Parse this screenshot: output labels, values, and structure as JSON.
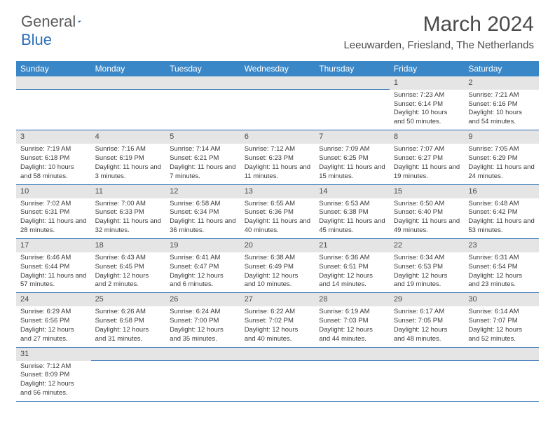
{
  "logo": {
    "text1": "General",
    "text2": "Blue"
  },
  "title": "March 2024",
  "location": "Leeuwarden, Friesland, The Netherlands",
  "colors": {
    "header_bg": "#3a87c8",
    "header_text": "#ffffff",
    "daynum_bg": "#e5e5e5",
    "row_divider": "#2e6fb5",
    "body_text": "#3a3a3a",
    "title_text": "#4a4a4a"
  },
  "weekdays": [
    "Sunday",
    "Monday",
    "Tuesday",
    "Wednesday",
    "Thursday",
    "Friday",
    "Saturday"
  ],
  "first_weekday_index": 5,
  "days": [
    {
      "n": 1,
      "sunrise": "7:23 AM",
      "sunset": "6:14 PM",
      "daylight": "10 hours and 50 minutes."
    },
    {
      "n": 2,
      "sunrise": "7:21 AM",
      "sunset": "6:16 PM",
      "daylight": "10 hours and 54 minutes."
    },
    {
      "n": 3,
      "sunrise": "7:19 AM",
      "sunset": "6:18 PM",
      "daylight": "10 hours and 58 minutes."
    },
    {
      "n": 4,
      "sunrise": "7:16 AM",
      "sunset": "6:19 PM",
      "daylight": "11 hours and 3 minutes."
    },
    {
      "n": 5,
      "sunrise": "7:14 AM",
      "sunset": "6:21 PM",
      "daylight": "11 hours and 7 minutes."
    },
    {
      "n": 6,
      "sunrise": "7:12 AM",
      "sunset": "6:23 PM",
      "daylight": "11 hours and 11 minutes."
    },
    {
      "n": 7,
      "sunrise": "7:09 AM",
      "sunset": "6:25 PM",
      "daylight": "11 hours and 15 minutes."
    },
    {
      "n": 8,
      "sunrise": "7:07 AM",
      "sunset": "6:27 PM",
      "daylight": "11 hours and 19 minutes."
    },
    {
      "n": 9,
      "sunrise": "7:05 AM",
      "sunset": "6:29 PM",
      "daylight": "11 hours and 24 minutes."
    },
    {
      "n": 10,
      "sunrise": "7:02 AM",
      "sunset": "6:31 PM",
      "daylight": "11 hours and 28 minutes."
    },
    {
      "n": 11,
      "sunrise": "7:00 AM",
      "sunset": "6:33 PM",
      "daylight": "11 hours and 32 minutes."
    },
    {
      "n": 12,
      "sunrise": "6:58 AM",
      "sunset": "6:34 PM",
      "daylight": "11 hours and 36 minutes."
    },
    {
      "n": 13,
      "sunrise": "6:55 AM",
      "sunset": "6:36 PM",
      "daylight": "11 hours and 40 minutes."
    },
    {
      "n": 14,
      "sunrise": "6:53 AM",
      "sunset": "6:38 PM",
      "daylight": "11 hours and 45 minutes."
    },
    {
      "n": 15,
      "sunrise": "6:50 AM",
      "sunset": "6:40 PM",
      "daylight": "11 hours and 49 minutes."
    },
    {
      "n": 16,
      "sunrise": "6:48 AM",
      "sunset": "6:42 PM",
      "daylight": "11 hours and 53 minutes."
    },
    {
      "n": 17,
      "sunrise": "6:46 AM",
      "sunset": "6:44 PM",
      "daylight": "11 hours and 57 minutes."
    },
    {
      "n": 18,
      "sunrise": "6:43 AM",
      "sunset": "6:45 PM",
      "daylight": "12 hours and 2 minutes."
    },
    {
      "n": 19,
      "sunrise": "6:41 AM",
      "sunset": "6:47 PM",
      "daylight": "12 hours and 6 minutes."
    },
    {
      "n": 20,
      "sunrise": "6:38 AM",
      "sunset": "6:49 PM",
      "daylight": "12 hours and 10 minutes."
    },
    {
      "n": 21,
      "sunrise": "6:36 AM",
      "sunset": "6:51 PM",
      "daylight": "12 hours and 14 minutes."
    },
    {
      "n": 22,
      "sunrise": "6:34 AM",
      "sunset": "6:53 PM",
      "daylight": "12 hours and 19 minutes."
    },
    {
      "n": 23,
      "sunrise": "6:31 AM",
      "sunset": "6:54 PM",
      "daylight": "12 hours and 23 minutes."
    },
    {
      "n": 24,
      "sunrise": "6:29 AM",
      "sunset": "6:56 PM",
      "daylight": "12 hours and 27 minutes."
    },
    {
      "n": 25,
      "sunrise": "6:26 AM",
      "sunset": "6:58 PM",
      "daylight": "12 hours and 31 minutes."
    },
    {
      "n": 26,
      "sunrise": "6:24 AM",
      "sunset": "7:00 PM",
      "daylight": "12 hours and 35 minutes."
    },
    {
      "n": 27,
      "sunrise": "6:22 AM",
      "sunset": "7:02 PM",
      "daylight": "12 hours and 40 minutes."
    },
    {
      "n": 28,
      "sunrise": "6:19 AM",
      "sunset": "7:03 PM",
      "daylight": "12 hours and 44 minutes."
    },
    {
      "n": 29,
      "sunrise": "6:17 AM",
      "sunset": "7:05 PM",
      "daylight": "12 hours and 48 minutes."
    },
    {
      "n": 30,
      "sunrise": "6:14 AM",
      "sunset": "7:07 PM",
      "daylight": "12 hours and 52 minutes."
    },
    {
      "n": 31,
      "sunrise": "7:12 AM",
      "sunset": "8:09 PM",
      "daylight": "12 hours and 56 minutes."
    }
  ],
  "labels": {
    "sunrise": "Sunrise:",
    "sunset": "Sunset:",
    "daylight": "Daylight:"
  }
}
